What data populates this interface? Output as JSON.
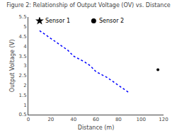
{
  "chart_data": {
    "type": "line",
    "title": "Figure 2: Relationship of Output Voltage (OV) vs. Distance",
    "x_label": "Distance (m)",
    "y_label": "Output Voltage (V)",
    "xlim": [
      0,
      120
    ],
    "ylim": [
      0.5,
      5.5
    ],
    "xticks": [
      0,
      20,
      40,
      60,
      80,
      100,
      120
    ],
    "yticks": [
      0.5,
      1,
      1.5,
      2,
      2.5,
      3,
      3.5,
      4,
      4.5,
      5,
      5.5
    ],
    "grid": false,
    "series": [
      {
        "type": "line",
        "color": "blue",
        "line_style": "dotted",
        "x": [
          10,
          15,
          20,
          25,
          30,
          35,
          40,
          50,
          55,
          60,
          70,
          75,
          80,
          85,
          90
        ],
        "values": [
          4.8,
          4.6,
          4.4,
          4.2,
          4.0,
          3.8,
          3.5,
          3.2,
          3.0,
          2.7,
          2.4,
          2.2,
          2.0,
          1.8,
          1.6
        ]
      },
      {
        "type": "scatter",
        "color": "black",
        "marker": "point",
        "x": [
          115
        ],
        "values": [
          2.8
        ]
      },
      {
        "type": "scatter",
        "color": "black",
        "marker": "star",
        "x": [
          10
        ],
        "values": [
          5.3
        ]
      },
      {
        "type": "scatter",
        "color": "black",
        "marker": "circle",
        "x": [
          58
        ],
        "values": [
          5.3
        ]
      }
    ],
    "annotations": [
      {
        "text": "Sensor 1",
        "x": 10,
        "y": 5.3
      },
      {
        "text": "Sensor 2",
        "x": 58,
        "y": 5.3
      }
    ]
  }
}
